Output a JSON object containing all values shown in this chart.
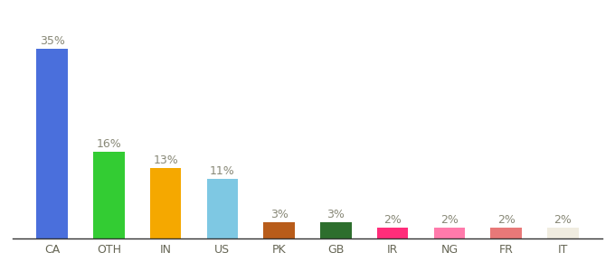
{
  "categories": [
    "CA",
    "OTH",
    "IN",
    "US",
    "PK",
    "GB",
    "IR",
    "NG",
    "FR",
    "IT"
  ],
  "values": [
    35,
    16,
    13,
    11,
    3,
    3,
    2,
    2,
    2,
    2
  ],
  "bar_colors": [
    "#4a6fdc",
    "#33cc33",
    "#f5a800",
    "#7ec8e3",
    "#b85c1a",
    "#2d6e2d",
    "#ff2d7a",
    "#ff7aab",
    "#e87878",
    "#f0ece0"
  ],
  "labels": [
    "35%",
    "16%",
    "13%",
    "11%",
    "3%",
    "3%",
    "2%",
    "2%",
    "2%",
    "2%"
  ],
  "label_fontsize": 9,
  "tick_fontsize": 9,
  "label_color": "#888877",
  "ylim": [
    0,
    40
  ],
  "bar_width": 0.55,
  "background_color": "#ffffff"
}
